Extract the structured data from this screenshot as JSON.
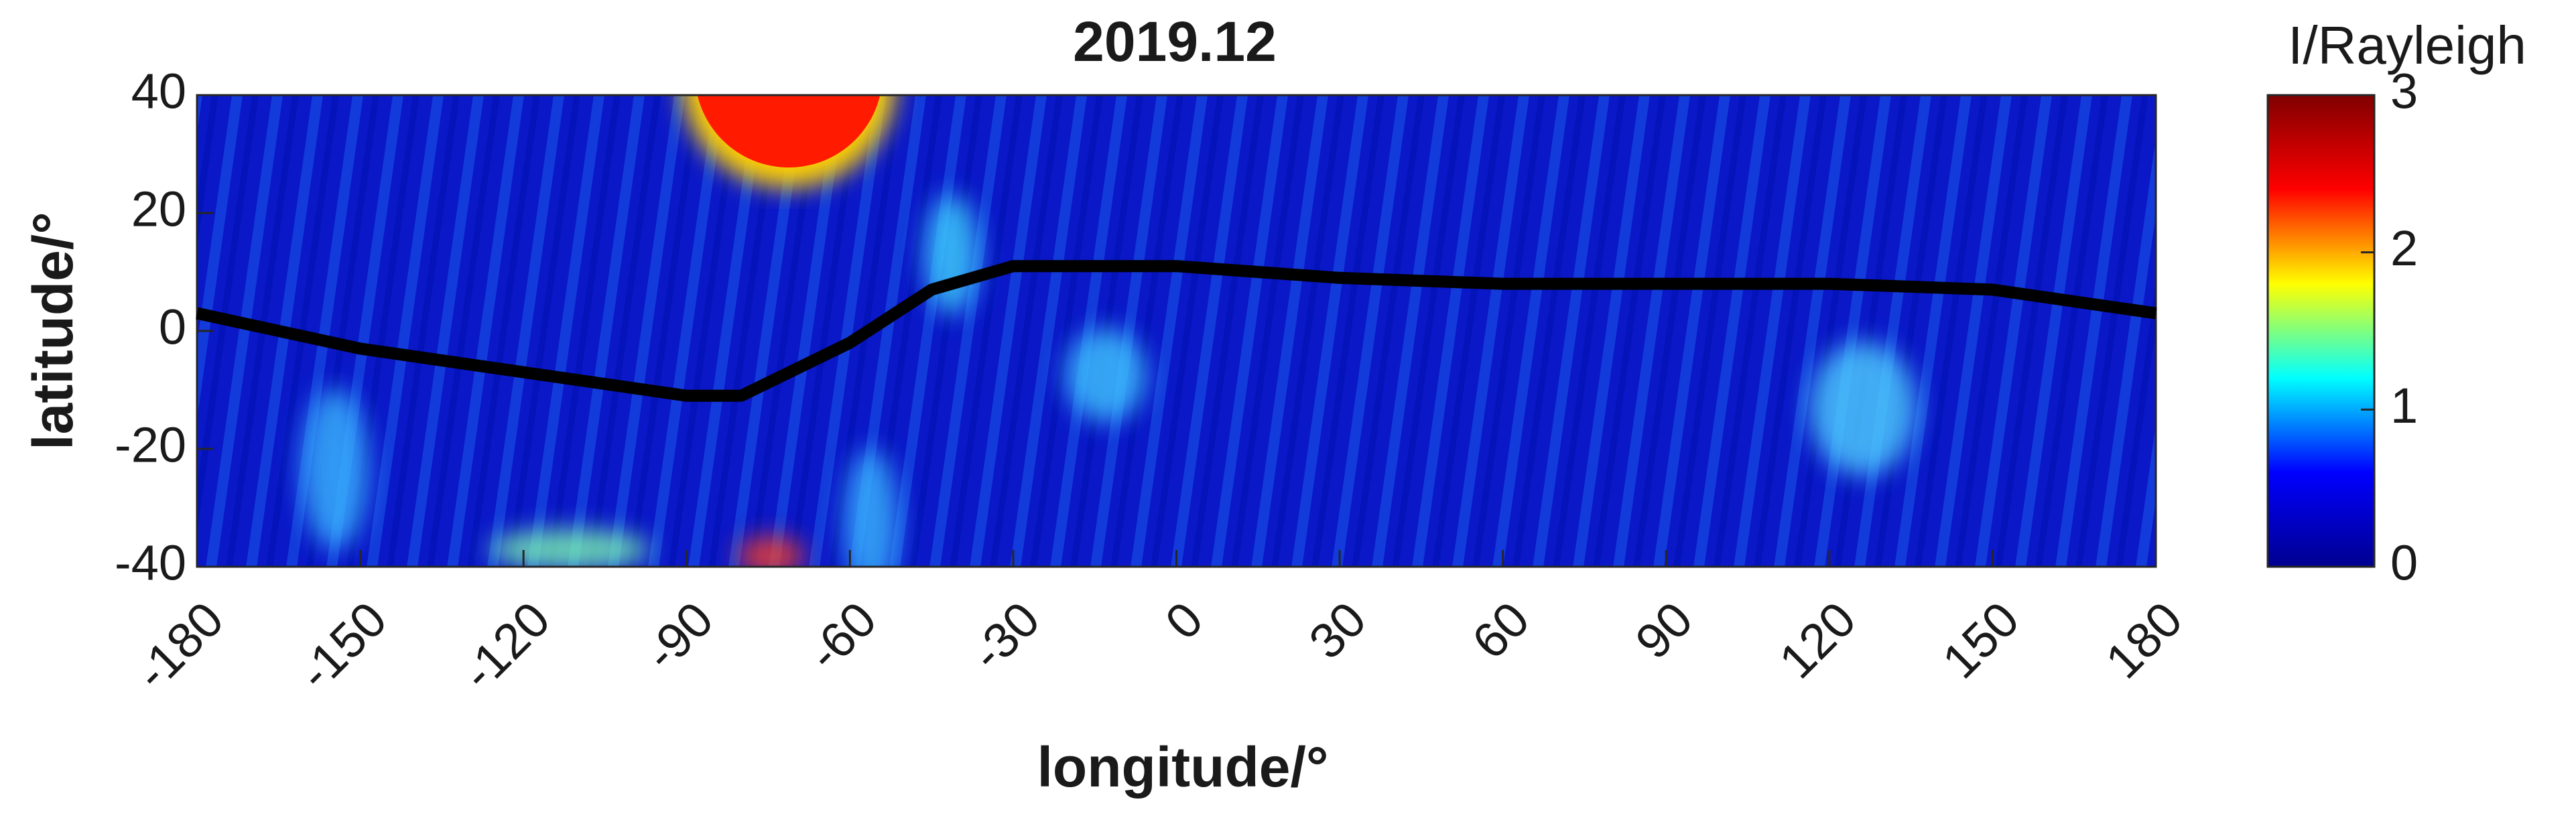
{
  "chart_data": {
    "type": "line",
    "title": "2019.12",
    "xlabel": "longitude/°",
    "ylabel": "latitude/°",
    "x": [
      -180,
      -150,
      -120,
      -90,
      -80,
      -60,
      -45,
      -30,
      -20,
      0,
      30,
      60,
      90,
      120,
      150,
      180
    ],
    "values": [
      3,
      -3,
      -7,
      -11,
      -11,
      -2,
      7,
      11,
      11,
      11,
      9,
      8,
      8,
      8,
      7,
      3
    ],
    "color": "#000000",
    "xlim": [
      -180,
      180
    ],
    "ylim": [
      -40,
      40
    ],
    "xticks": [
      -180,
      -150,
      -120,
      -90,
      -60,
      -30,
      0,
      30,
      60,
      90,
      120,
      150,
      180
    ],
    "yticks": [
      -40,
      -20,
      0,
      20,
      40
    ],
    "colorbar": {
      "label": "I/Rayleigh",
      "lim": [
        0,
        3
      ],
      "ticks": [
        0,
        1,
        2,
        3
      ],
      "colormap": [
        "#00008f",
        "#0000ff",
        "#00ffff",
        "#ffff00",
        "#ff0000",
        "#800000"
      ]
    }
  }
}
